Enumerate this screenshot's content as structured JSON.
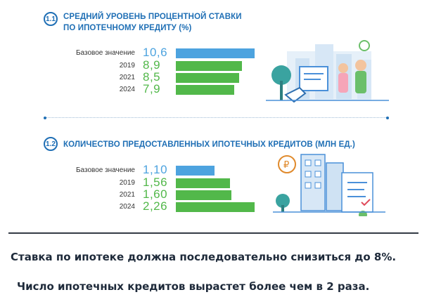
{
  "colors": {
    "accent": "#1f6fb5",
    "base_bar": "#4da3df",
    "year_bar": "#52b84a",
    "base_value": "#4da3df",
    "year_value": "#52b84a"
  },
  "chart_data": [
    {
      "type": "bar",
      "orientation": "horizontal",
      "number": "1.1",
      "title_lines": [
        "СРЕДНИЙ УРОВЕНЬ ПРОЦЕНТНОЙ СТАВКИ",
        "ПО ИПОТЕЧНОМУ КРЕДИТУ (%)"
      ],
      "categories": [
        "Базовое значение",
        "2019",
        "2021",
        "2024"
      ],
      "value_labels": [
        "10,6",
        "8,9",
        "8,5",
        "7,9"
      ],
      "values": [
        10.6,
        8.9,
        8.5,
        7.9
      ],
      "xlim": [
        0,
        10.6
      ]
    },
    {
      "type": "bar",
      "orientation": "horizontal",
      "number": "1.2",
      "title_lines": [
        "КОЛИЧЕСТВО ПРЕДОСТАВЛЕННЫХ ИПОТЕЧНЫХ КРЕДИТОВ (МЛН ЕД.)"
      ],
      "categories": [
        "Базовое значение",
        "2019",
        "2021",
        "2024"
      ],
      "value_labels": [
        "1,10",
        "1,56",
        "1,60",
        "2,26"
      ],
      "values": [
        1.1,
        1.56,
        1.6,
        2.26
      ],
      "xlim": [
        0,
        2.26
      ]
    }
  ],
  "captions": {
    "line1": "Ставка по ипотеке должна последовательно снизиться до 8%.",
    "line2": "Число ипотечных кредитов вырастет более чем в 2 раза."
  },
  "icons": {
    "illustration1": "mortgage-city-family-illustration",
    "illustration2": "city-buildings-document-illustration"
  }
}
